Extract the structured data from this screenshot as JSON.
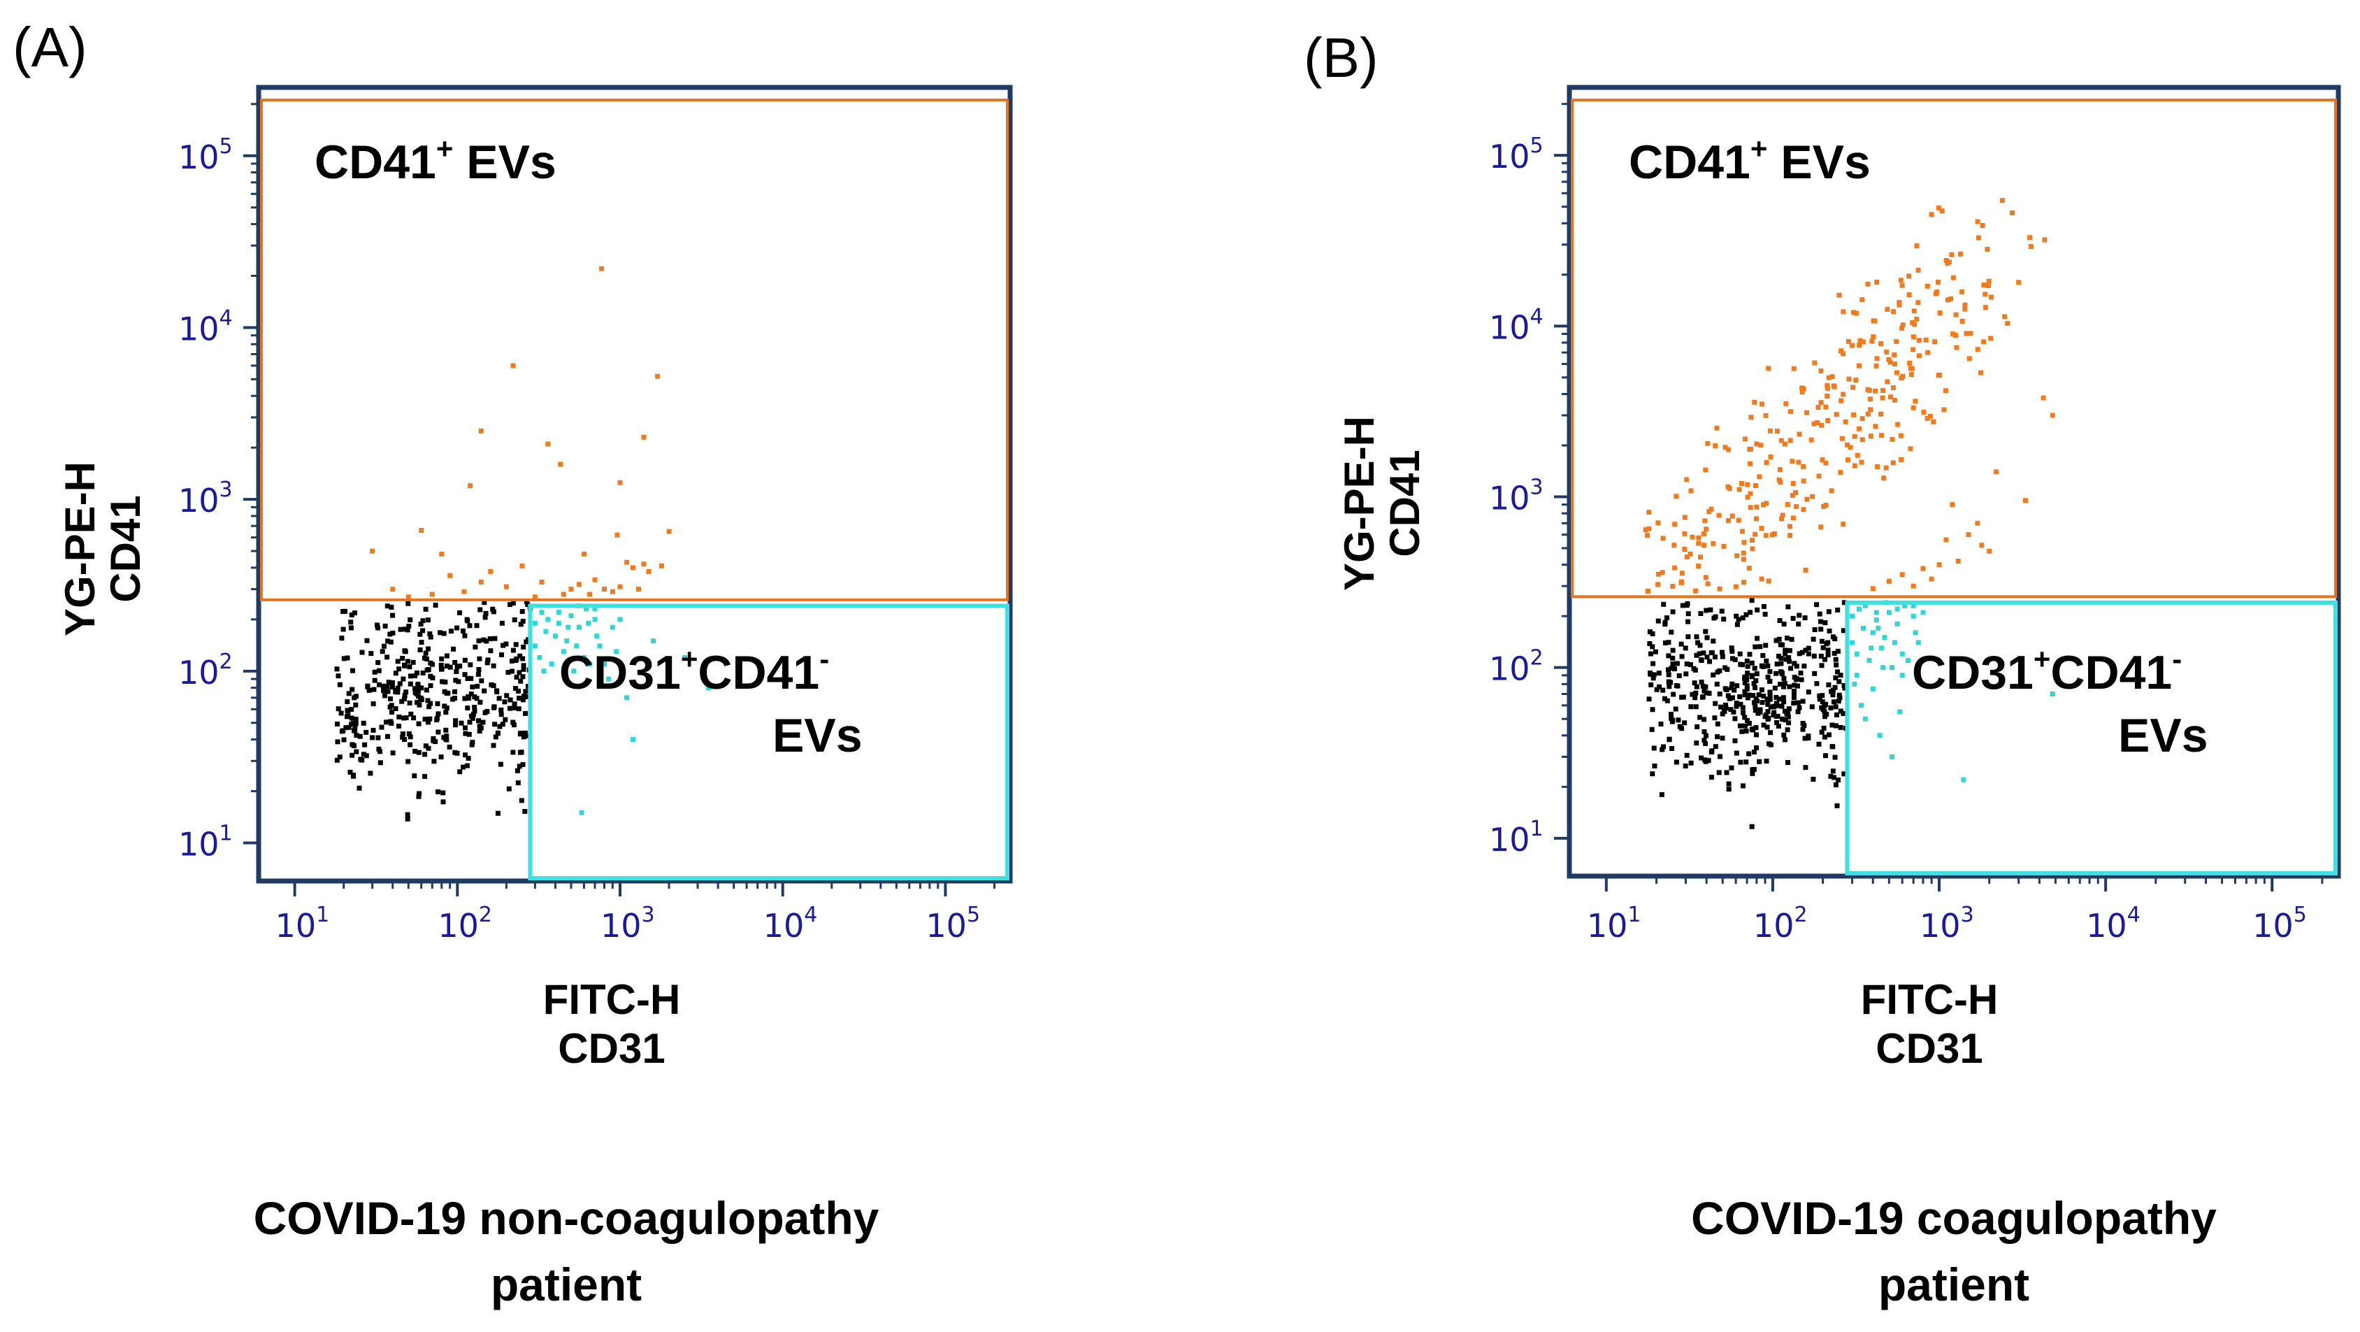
{
  "colors": {
    "frame": "#1f3b63",
    "tick_text": "#1a1a9a",
    "cd41_gate": "#e8731e",
    "cd31_gate": "#3fe0e0",
    "cd41_points": "#f07a1e",
    "cd31_points": "#2fd6d6",
    "negative_points": "#000000"
  },
  "chart_data": [
    {
      "type": "scatter",
      "panel_label": "(A)",
      "xlabel": [
        "FITC-H",
        "CD31"
      ],
      "ylabel": [
        "YG-PE-H",
        "CD41"
      ],
      "xscale": "log",
      "yscale": "log",
      "xlim": [
        6,
        250000
      ],
      "ylim": [
        6,
        250000
      ],
      "xticks": [
        10,
        100,
        1000,
        10000,
        100000
      ],
      "yticks": [
        10,
        100,
        1000,
        10000,
        100000
      ],
      "gates": [
        {
          "name": "CD41+ EVs",
          "label_main": "CD41",
          "label_sup": "+",
          "label_tail": " EVs",
          "x_range": [
            6,
            250000
          ],
          "y_range": [
            260,
            230000
          ],
          "color": "cd41_gate"
        },
        {
          "name": "CD31+CD41- EVs",
          "label_main": "CD31",
          "label_sup": "+",
          "label_mid": "CD41",
          "label_sup2": "-",
          "label_line2": "EVs",
          "x_range": [
            280,
            250000
          ],
          "y_range": [
            6,
            240
          ],
          "color": "cd31_gate"
        }
      ],
      "series": [
        {
          "color_key": "cd41_points",
          "points": [
            [
              770,
              22000
            ],
            [
              220,
              6000
            ],
            [
              1700,
              5200
            ],
            [
              140,
              2500
            ],
            [
              1400,
              2300
            ],
            [
              360,
              2100
            ],
            [
              430,
              1600
            ],
            [
              120,
              1200
            ],
            [
              1000,
              1250
            ],
            [
              60,
              660
            ],
            [
              2000,
              650
            ],
            [
              30,
              500
            ],
            [
              80,
              480
            ],
            [
              250,
              410
            ],
            [
              600,
              480
            ],
            [
              960,
              620
            ],
            [
              1100,
              430
            ],
            [
              1200,
              400
            ],
            [
              1400,
              420
            ],
            [
              1500,
              380
            ],
            [
              1800,
              410
            ],
            [
              90,
              360
            ],
            [
              160,
              380
            ],
            [
              330,
              330
            ],
            [
              500,
              300
            ],
            [
              560,
              320
            ],
            [
              700,
              340
            ],
            [
              800,
              300
            ],
            [
              1000,
              310
            ],
            [
              1300,
              300
            ],
            [
              40,
              300
            ],
            [
              70,
              280
            ],
            [
              110,
              290
            ],
            [
              200,
              310
            ],
            [
              140,
              330
            ],
            [
              450,
              280
            ],
            [
              650,
              280
            ],
            [
              900,
              290
            ],
            [
              300,
              270
            ],
            [
              50,
              270
            ]
          ]
        },
        {
          "color_key": "cd31_points",
          "points": [
            [
              300,
              140
            ],
            [
              320,
              120
            ],
            [
              350,
              170
            ],
            [
              380,
              110
            ],
            [
              400,
              160
            ],
            [
              420,
              190
            ],
            [
              450,
              130
            ],
            [
              470,
              150
            ],
            [
              500,
              210
            ],
            [
              520,
              100
            ],
            [
              540,
              140
            ],
            [
              560,
              180
            ],
            [
              600,
              120
            ],
            [
              620,
              230
            ],
            [
              650,
              110
            ],
            [
              700,
              200
            ],
            [
              720,
              160
            ],
            [
              750,
              140
            ],
            [
              800,
              110
            ],
            [
              850,
              90
            ],
            [
              900,
              180
            ],
            [
              950,
              130
            ],
            [
              1000,
              200
            ],
            [
              1100,
              70
            ],
            [
              1200,
              40
            ],
            [
              1400,
              100
            ],
            [
              1600,
              150
            ],
            [
              2000,
              110
            ],
            [
              2500,
              120
            ],
            [
              3500,
              80
            ],
            [
              580,
              15
            ],
            [
              330,
              220
            ],
            [
              360,
              200
            ],
            [
              420,
              220
            ],
            [
              480,
              180
            ],
            [
              560,
              240
            ],
            [
              640,
              190
            ],
            [
              700,
              230
            ],
            [
              300,
              190
            ],
            [
              340,
              100
            ]
          ]
        },
        {
          "color_key": "negative_points",
          "generated": {
            "count": 420,
            "x_center": 80,
            "x_spread": 0.42,
            "y_center": 75,
            "y_spread": 0.28,
            "x_max": 280,
            "y_max": 255,
            "seed": 11
          }
        }
      ],
      "caption": [
        "COVID-19 non-coagulopathy",
        "patient"
      ]
    },
    {
      "type": "scatter",
      "panel_label": "(B)",
      "xlabel": [
        "FITC-H",
        "CD31"
      ],
      "ylabel": [
        "YG-PE-H",
        "CD41"
      ],
      "xscale": "log",
      "yscale": "log",
      "xlim": [
        6,
        250000
      ],
      "ylim": [
        6,
        250000
      ],
      "xticks": [
        10,
        100,
        1000,
        10000,
        100000
      ],
      "yticks": [
        10,
        100,
        1000,
        10000,
        100000
      ],
      "gates": [
        {
          "name": "CD41+ EVs",
          "label_main": "CD41",
          "label_sup": "+",
          "label_tail": " EVs",
          "x_range": [
            6,
            250000
          ],
          "y_range": [
            260,
            230000
          ],
          "color": "cd41_gate"
        },
        {
          "name": "CD31+CD41- EVs",
          "label_main": "CD31",
          "label_sup": "+",
          "label_mid": "CD41",
          "label_sup2": "-",
          "label_line2": "EVs",
          "x_range": [
            280,
            250000
          ],
          "y_range": [
            6,
            240
          ],
          "color": "cd31_gate"
        }
      ],
      "series": [
        {
          "color_key": "cd41_points",
          "generated": {
            "count": 340,
            "along_x": [
              25,
              2000
            ],
            "along_y": [
              300,
              20000
            ],
            "jitter": 0.35,
            "seed": 23
          }
        },
        {
          "color_key": "cd41_points",
          "points": [
            [
              900,
              45000
            ],
            [
              3500,
              33000
            ],
            [
              4300,
              32000
            ],
            [
              4800,
              3000
            ],
            [
              3300,
              950
            ],
            [
              1200,
              900
            ],
            [
              1500,
              600
            ],
            [
              1800,
              520
            ],
            [
              2000,
              480
            ],
            [
              1000,
              400
            ],
            [
              800,
              380
            ],
            [
              600,
              350
            ],
            [
              1300,
              420
            ],
            [
              1700,
              700
            ],
            [
              2200,
              1400
            ],
            [
              700,
              300
            ],
            [
              500,
              320
            ],
            [
              400,
              290
            ],
            [
              900,
              330
            ],
            [
              1100,
              560
            ]
          ]
        },
        {
          "color_key": "cd31_points",
          "points": [
            [
              300,
              140
            ],
            [
              320,
              120
            ],
            [
              350,
              170
            ],
            [
              380,
              110
            ],
            [
              400,
              160
            ],
            [
              420,
              190
            ],
            [
              450,
              130
            ],
            [
              470,
              150
            ],
            [
              500,
              210
            ],
            [
              520,
              100
            ],
            [
              540,
              140
            ],
            [
              560,
              180
            ],
            [
              600,
              120
            ],
            [
              620,
              230
            ],
            [
              650,
              110
            ],
            [
              700,
              200
            ],
            [
              720,
              160
            ],
            [
              750,
              140
            ],
            [
              320,
              90
            ],
            [
              340,
              60
            ],
            [
              360,
              50
            ],
            [
              400,
              75
            ],
            [
              440,
              40
            ],
            [
              460,
              100
            ],
            [
              520,
              30
            ],
            [
              580,
              55
            ],
            [
              300,
              200
            ],
            [
              330,
              220
            ],
            [
              360,
              230
            ],
            [
              420,
              210
            ],
            [
              480,
              240
            ],
            [
              560,
              220
            ],
            [
              700,
              230
            ],
            [
              800,
              210
            ],
            [
              4800,
              70
            ],
            [
              1400,
              22
            ],
            [
              600,
              90
            ],
            [
              390,
              130
            ],
            [
              430,
              170
            ],
            [
              310,
              80
            ]
          ]
        },
        {
          "color_key": "negative_points",
          "generated": {
            "count": 470,
            "x_center": 80,
            "x_spread": 0.38,
            "y_center": 75,
            "y_spread": 0.26,
            "x_max": 280,
            "y_max": 255,
            "seed": 37
          }
        }
      ],
      "caption": [
        "COVID-19 coagulopathy",
        "patient"
      ]
    }
  ]
}
